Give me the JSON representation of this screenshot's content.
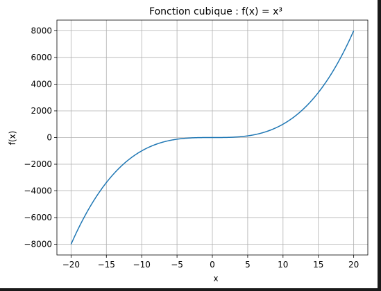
{
  "chart_data": {
    "type": "line",
    "title": "Fonction cubique : f(x) = x³",
    "xlabel": "x",
    "ylabel": "f(x)",
    "xlim": [
      -22,
      22
    ],
    "ylim": [
      -8800,
      8800
    ],
    "grid": true,
    "x_ticks": [
      -20,
      -15,
      -10,
      -5,
      0,
      5,
      10,
      15,
      20
    ],
    "x_tick_labels": [
      "−20",
      "−15",
      "−10",
      "−5",
      "0",
      "5",
      "10",
      "15",
      "20"
    ],
    "y_ticks": [
      -8000,
      -6000,
      -4000,
      -2000,
      0,
      2000,
      4000,
      6000,
      8000
    ],
    "y_tick_labels": [
      "−8000",
      "−6000",
      "−4000",
      "−2000",
      "0",
      "2000",
      "4000",
      "6000",
      "8000"
    ],
    "series": [
      {
        "function": "x^3",
        "x_range": [
          -20,
          20
        ],
        "color": "#1f77b4"
      }
    ]
  }
}
